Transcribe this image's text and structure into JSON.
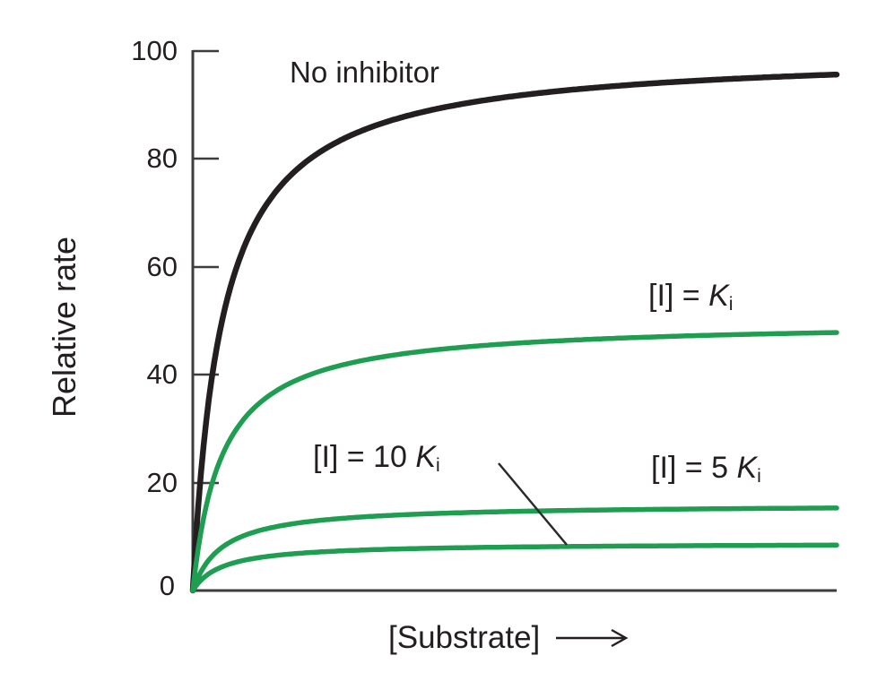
{
  "figure": {
    "y_axis": {
      "label": "Relative rate",
      "ticks": [
        "100",
        "80",
        "60",
        "40",
        "20",
        "0"
      ]
    },
    "x_axis": {
      "label": "[Substrate]",
      "arrow_icon": "long-right-arrow"
    },
    "annotations": {
      "no_inhibitor": "No inhibitor",
      "ki": {
        "prefix": "[I] = ",
        "symbol": "K",
        "subscript": "i"
      },
      "ki5": {
        "prefix": "[I] = 5 ",
        "symbol": "K",
        "subscript": "i"
      },
      "ki10": {
        "prefix": "[I] = 10 ",
        "symbol": "K",
        "subscript": "i"
      }
    },
    "colors": {
      "curve_black": "#231f20",
      "curve_green": "#1f9e52",
      "axis": "#3d3d3d",
      "text": "#231f20"
    }
  },
  "chart_data": {
    "type": "line",
    "title": "",
    "xlabel": "[Substrate]",
    "ylabel": "Relative rate",
    "ylim": [
      0,
      100
    ],
    "x_axis_ticks": "none (qualitative substrate concentration axis, increasing to the right)",
    "grid": false,
    "legend": "inline curve annotations",
    "model": "michaelis_menten v = Vmax*S/(Km+S), noncompetitive inhibition (Km unchanged, Vmax reduced)",
    "x_samples_in_Km_units": [
      0,
      0.5,
      1,
      2,
      4,
      8,
      16,
      22
    ],
    "series": [
      {
        "id": "no-inhibitor",
        "name": "No inhibitor",
        "vmax": 100,
        "km": 1,
        "values": [
          0,
          33.3,
          50,
          66.7,
          80,
          88.9,
          94.1,
          95.7
        ],
        "color": "#231f20",
        "width": 6.5
      },
      {
        "id": "ki",
        "name": "[I] = Ki",
        "vmax": 50,
        "km": 1,
        "values": [
          0,
          16.7,
          25,
          33.3,
          40,
          44.4,
          47.1,
          47.8
        ],
        "color": "#1f9e52",
        "width": 5.5
      },
      {
        "id": "5ki",
        "name": "[I] = 5 Ki",
        "vmax": 16,
        "km": 1,
        "values": [
          0,
          5.3,
          8,
          10.7,
          12.8,
          14.2,
          15.1,
          15.3
        ],
        "color": "#1f9e52",
        "width": 5.5
      },
      {
        "id": "10ki",
        "name": "[I] = 10 Ki",
        "vmax": 8.8,
        "km": 1,
        "values": [
          0,
          2.9,
          4.4,
          5.9,
          7.0,
          7.8,
          8.3,
          8.4
        ],
        "color": "#1f9e52",
        "width": 5.5
      }
    ]
  }
}
